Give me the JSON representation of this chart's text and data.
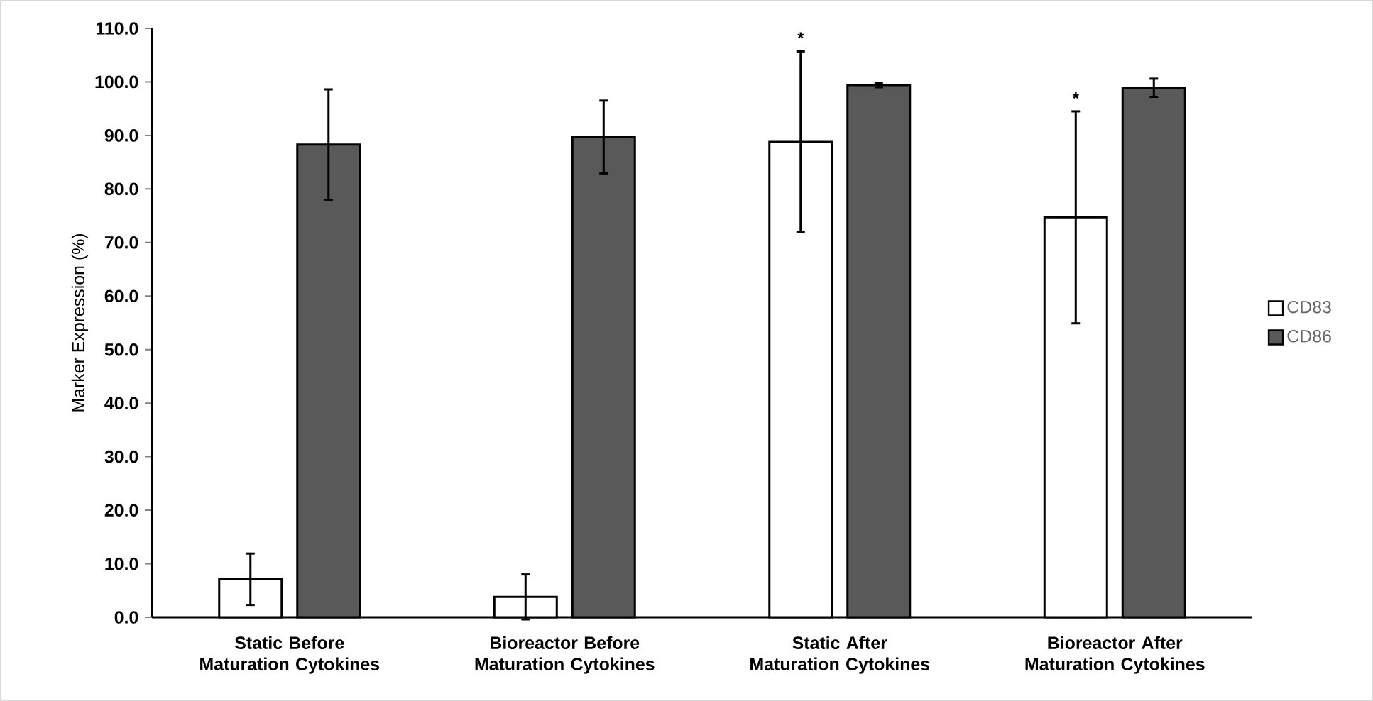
{
  "chart_data": {
    "type": "bar",
    "ylabel": "Marker Expression (%)",
    "categories": [
      "Static Before Maturation Cytokines",
      "Bioreactor Before Maturation Cytokines",
      "Static After Maturation Cytokines",
      "Bioreactor After Maturation Cytokines"
    ],
    "series": [
      {
        "name": "CD83",
        "color": "#ffffff",
        "values": [
          7.1,
          3.8,
          88.8,
          74.7
        ],
        "errors": [
          4.8,
          4.2,
          16.9,
          19.8
        ]
      },
      {
        "name": "CD86",
        "color": "#595959",
        "values": [
          88.3,
          89.7,
          99.4,
          98.9
        ],
        "errors": [
          10.3,
          6.8,
          0.4,
          1.7
        ]
      }
    ],
    "ylim": [
      0,
      110
    ],
    "yticks": [
      {
        "value": 0,
        "label": "0.0"
      },
      {
        "value": 10,
        "label": "10.0"
      },
      {
        "value": 20,
        "label": "20.0"
      },
      {
        "value": 30,
        "label": "30.0"
      },
      {
        "value": 40,
        "label": "40.0"
      },
      {
        "value": 50,
        "label": "50.0"
      },
      {
        "value": 60,
        "label": "60.0"
      },
      {
        "value": 70,
        "label": "70.0"
      },
      {
        "value": 80,
        "label": "80.0"
      },
      {
        "value": 90,
        "label": "90.0"
      },
      {
        "value": 100,
        "label": "100.0"
      },
      {
        "value": 110,
        "label": "110.0"
      }
    ],
    "annotations": [
      "*",
      "*"
    ],
    "grid": false,
    "legend": "right"
  }
}
